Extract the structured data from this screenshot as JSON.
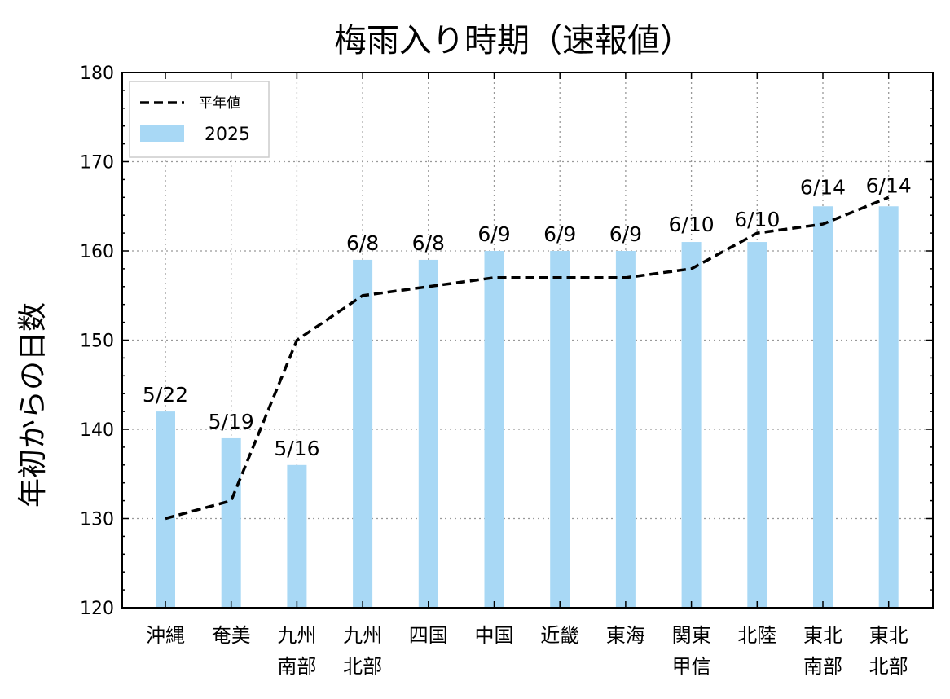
{
  "chart_data": {
    "type": "bar",
    "title": "梅雨入り時期（速報値）",
    "xlabel": "",
    "ylabel": "年初からの日数",
    "ylim": [
      120,
      180
    ],
    "yticks": [
      120,
      130,
      140,
      150,
      160,
      170,
      180
    ],
    "grid": true,
    "legend_position": "top-left",
    "categories": [
      [
        "沖縄"
      ],
      [
        "奄美"
      ],
      [
        "九州",
        "南部"
      ],
      [
        "九州",
        "北部"
      ],
      [
        "四国"
      ],
      [
        "中国"
      ],
      [
        "近畿"
      ],
      [
        "東海"
      ],
      [
        "関東",
        "甲信"
      ],
      [
        "北陸"
      ],
      [
        "東北",
        "南部"
      ],
      [
        "東北",
        "北部"
      ]
    ],
    "series": [
      {
        "name": "2025",
        "kind": "bar",
        "color": "#a8d8f5",
        "values": [
          142,
          139,
          136,
          159,
          159,
          160,
          160,
          160,
          161,
          161,
          165,
          165
        ],
        "labels": [
          "5/22",
          "5/19",
          "5/16",
          "6/8",
          "6/8",
          "6/9",
          "6/9",
          "6/9",
          "6/10",
          "6/10",
          "6/14",
          "6/14"
        ]
      },
      {
        "name": "平年値",
        "kind": "line",
        "style": "dashed",
        "color": "#000000",
        "values": [
          130,
          132,
          150,
          155,
          156,
          157,
          157,
          157,
          158,
          162,
          163,
          166
        ]
      }
    ]
  }
}
